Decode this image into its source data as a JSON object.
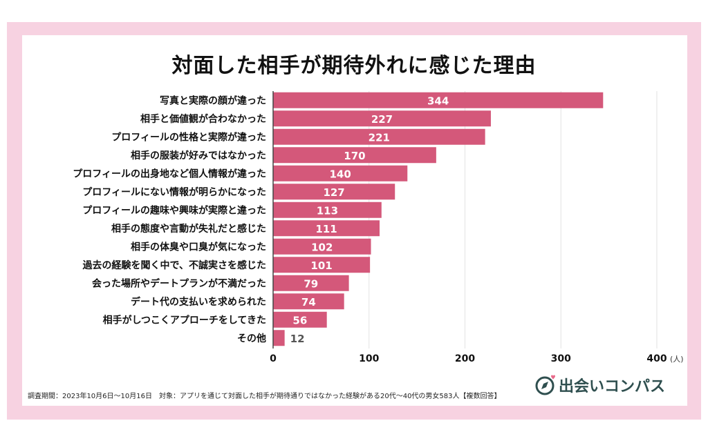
{
  "chart_data": {
    "type": "bar",
    "orientation": "horizontal",
    "title": "対面した相手が期待外れに感じた理由",
    "categories": [
      "写真と実際の顔が違った",
      "相手と価値観が合わなかった",
      "プロフィールの性格と実際が違った",
      "相手の服装が好みではなかった",
      "プロフィールの出身地など個人情報が違った",
      "プロフィールにない情報が明らかになった",
      "プロフィールの趣味や興味が実際と違った",
      "相手の態度や言動が失礼だと感じた",
      "相手の体臭や口臭が気になった",
      "過去の経験を聞く中で、不誠実さを感じた",
      "会った場所やデートプランが不満だった",
      "デート代の支払いを求められた",
      "相手がしつこくアプローチをしてきた",
      "その他"
    ],
    "values": [
      344,
      227,
      221,
      170,
      140,
      127,
      113,
      111,
      102,
      101,
      79,
      74,
      56,
      12
    ],
    "xlim": [
      0,
      400
    ],
    "xticks": [
      "0",
      "100",
      "200",
      "300",
      "400"
    ],
    "unit": "(人)",
    "grid": true,
    "bar_color": "#d4587a",
    "label_color": "#ffffff",
    "outside_label_color": "#555555",
    "frame_color": "#f7d2e1"
  },
  "footnote": "調査期間：2023年10月6日〜10月16日　対象：アプリを通じて対面した相手が期待通りではなかった経験がある20代〜40代の男女583人【複数回答】",
  "logo": {
    "text": "出会いコンパス",
    "icon": "compass-heart-icon",
    "color": "#2f4f4f",
    "accent": "#e86a8a"
  }
}
